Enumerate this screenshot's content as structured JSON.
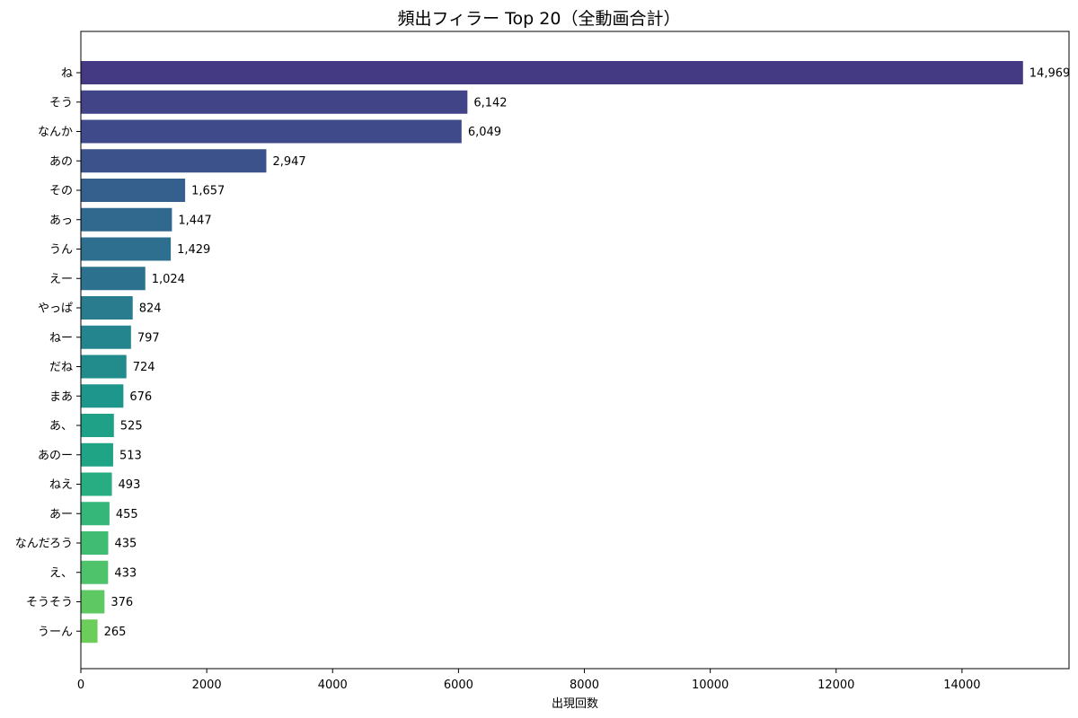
{
  "chart_data": {
    "type": "bar",
    "orientation": "horizontal",
    "title": "頻出フィラー Top 20（全動画合計）",
    "xlabel": "出現回数",
    "ylabel": "",
    "xlim": [
      0,
      15700
    ],
    "xticks": [
      0,
      2000,
      4000,
      6000,
      8000,
      10000,
      12000,
      14000
    ],
    "grid": false,
    "legend": "none",
    "colormap": "viridis",
    "categories": [
      "ね",
      "そう",
      "なんか",
      "あの",
      "その",
      "あっ",
      "うん",
      "えー",
      "やっぱ",
      "ねー",
      "だね",
      "まあ",
      "あ、",
      "あのー",
      "ねえ",
      "あー",
      "なんだろう",
      "え、",
      "そうそう",
      "うーん"
    ],
    "values": [
      14969,
      6142,
      6049,
      2947,
      1657,
      1447,
      1429,
      1024,
      824,
      797,
      724,
      676,
      525,
      513,
      493,
      455,
      435,
      433,
      376,
      265
    ],
    "value_labels": [
      "14,969",
      "6,142",
      "6,049",
      "2,947",
      "1,657",
      "1,447",
      "1,429",
      "1,024",
      "824",
      "797",
      "724",
      "676",
      "525",
      "513",
      "493",
      "455",
      "435",
      "433",
      "376",
      "265"
    ],
    "colors": [
      "#443983",
      "#414487",
      "#3e4a89",
      "#3b528b",
      "#355f8d",
      "#31688e",
      "#2e6e8e",
      "#2c728e",
      "#287c8e",
      "#25858e",
      "#228c8d",
      "#1f968b",
      "#1fa188",
      "#20a486",
      "#27ad81",
      "#35b779",
      "#40bd72",
      "#4ec36b",
      "#5ec962",
      "#6ccd5a"
    ]
  }
}
